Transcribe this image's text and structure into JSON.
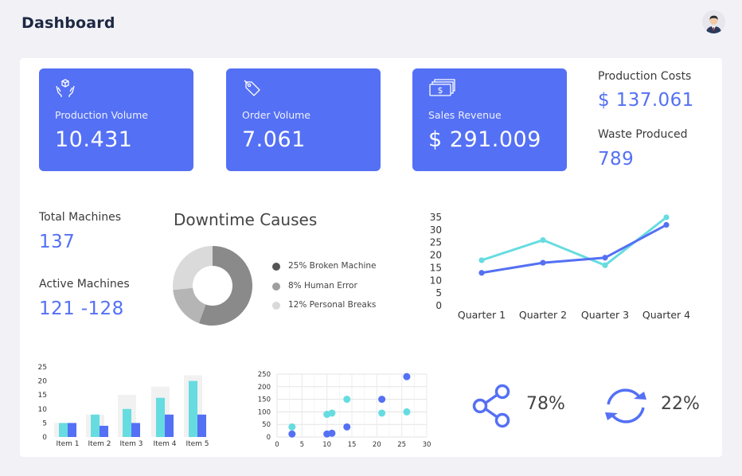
{
  "header": {
    "title": "Dashboard"
  },
  "cards": [
    {
      "label": "Production Volume",
      "value": "10.431",
      "icon": "hands-box-icon"
    },
    {
      "label": "Order Volume",
      "value": "7.061",
      "icon": "tag-icon"
    },
    {
      "label": "Sales Revenue",
      "value": "$ 291.009",
      "icon": "money-stack-icon"
    }
  ],
  "side_stats": {
    "production_costs_label": "Production Costs",
    "production_costs_value": "$ 137.061",
    "waste_label": "Waste Produced",
    "waste_value": "789"
  },
  "machines": {
    "total_label": "Total Machines",
    "total_value": "137",
    "active_label": "Active Machines",
    "active_value": "121 -128"
  },
  "downtime": {
    "title": "Downtime Causes",
    "legend": [
      {
        "text": "25% Broken Machine",
        "color": "#555555"
      },
      {
        "text": "8% Human Error",
        "color": "#9e9e9e"
      },
      {
        "text": "12% Personal Breaks",
        "color": "#d9d9d9"
      }
    ]
  },
  "share": {
    "percent": "78%",
    "icon": "share-icon"
  },
  "refresh": {
    "percent": "22%",
    "icon": "refresh-icon"
  },
  "colors": {
    "accent": "#5470f4",
    "cyan": "#66dce0"
  },
  "chart_data": [
    {
      "type": "pie",
      "title": "Downtime Causes",
      "labels": [
        "25% Broken Machine",
        "8% Human Error",
        "12% Personal Breaks"
      ],
      "values": [
        25,
        8,
        12
      ],
      "colors": [
        "#8a8a8a",
        "#b5b5b5",
        "#dadada"
      ],
      "donut": true
    },
    {
      "type": "line",
      "categories": [
        "Quarter 1",
        "Quarter 2",
        "Quarter 3",
        "Quarter 4"
      ],
      "yticks": [
        0,
        5,
        10,
        15,
        20,
        25,
        30,
        35
      ],
      "ylim": [
        0,
        35
      ],
      "series": [
        {
          "values": [
            18,
            26,
            16,
            35
          ],
          "color": "#66dce0"
        },
        {
          "values": [
            13,
            17,
            19,
            32
          ],
          "color": "#5470f4"
        }
      ]
    },
    {
      "type": "bar",
      "categories": [
        "Item 1",
        "Item 2",
        "Item 3",
        "Item 4",
        "Item 5"
      ],
      "yticks": [
        0,
        5,
        10,
        15,
        20,
        25
      ],
      "ylim": [
        0,
        25
      ],
      "series": [
        {
          "values": [
            5,
            8,
            15,
            18,
            22
          ],
          "color": "#f1f1f1"
        },
        {
          "values": [
            5,
            8,
            10,
            14,
            20
          ],
          "color": "#66dce0"
        },
        {
          "values": [
            5,
            4,
            5,
            8,
            8
          ],
          "color": "#5470f4"
        }
      ]
    },
    {
      "type": "scatter",
      "xticks": [
        0,
        5,
        10,
        15,
        20,
        25,
        30
      ],
      "yticks": [
        0,
        50,
        100,
        150,
        200,
        250
      ],
      "xlim": [
        0,
        30
      ],
      "ylim": [
        0,
        250
      ],
      "grid": true,
      "series": [
        {
          "color": "#66dce0",
          "points": [
            [
              3,
              40
            ],
            [
              10,
              90
            ],
            [
              11,
              95
            ],
            [
              14,
              150
            ],
            [
              21,
              95
            ],
            [
              26,
              100
            ]
          ]
        },
        {
          "color": "#5470f4",
          "points": [
            [
              3,
              12
            ],
            [
              10,
              12
            ],
            [
              11,
              15
            ],
            [
              14,
              40
            ],
            [
              21,
              150
            ],
            [
              26,
              240
            ]
          ]
        }
      ]
    }
  ]
}
